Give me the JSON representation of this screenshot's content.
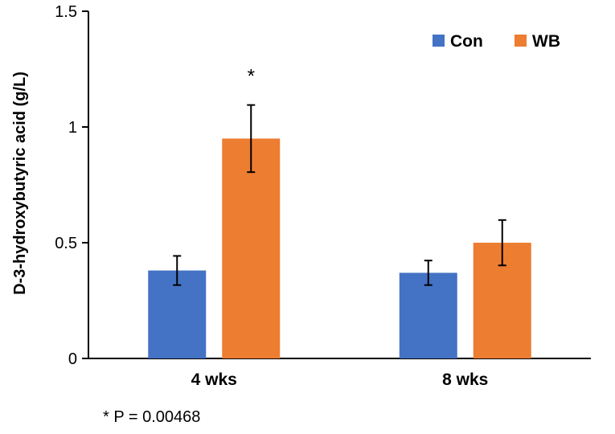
{
  "chart_data": {
    "type": "bar",
    "title": "",
    "xlabel": "",
    "ylabel": "D-3-hydroxybutyric acid (g/L)",
    "ylim": [
      0,
      1.5
    ],
    "yticks": [
      0,
      0.5,
      1,
      1.5
    ],
    "ytick_labels": [
      "0",
      "0.5",
      "1",
      "1.5"
    ],
    "categories": [
      "4 wks",
      "8 wks"
    ],
    "series": [
      {
        "name": "Con",
        "color": "#4472C4",
        "values": [
          0.38,
          0.37
        ],
        "errors": [
          0.063,
          0.053
        ]
      },
      {
        "name": "WB",
        "color": "#ED7D31",
        "values": [
          0.95,
          0.5
        ],
        "errors": [
          0.145,
          0.098
        ]
      }
    ],
    "legend_position": "top-right",
    "annotations": [
      {
        "text": "*",
        "category": "4 wks",
        "series": "WB"
      }
    ],
    "grid": false
  },
  "footnote": "* P = 0.00468"
}
